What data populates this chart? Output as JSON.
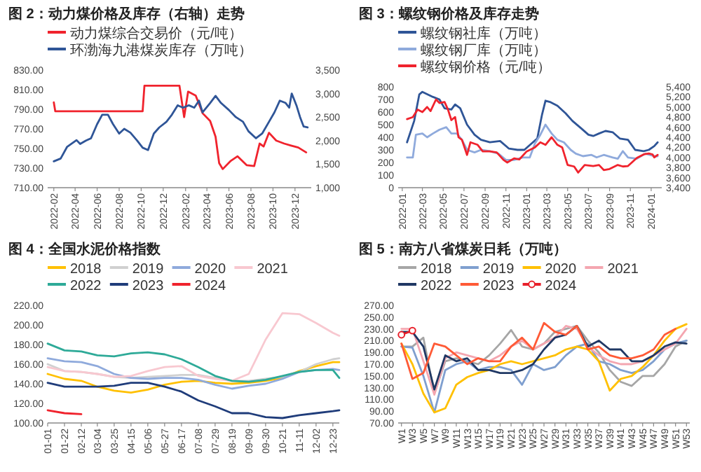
{
  "chart_data": [
    {
      "type": "line",
      "title": "图 2：动力煤价格及库存（右轴）走势",
      "legend": "top",
      "xlim": [
        "2022-01-15",
        "2024-01-15"
      ],
      "xticks": [
        "2022-02",
        "2022-04",
        "2022-06",
        "2022-08",
        "2022-10",
        "2022-12",
        "2023-02",
        "2023-04",
        "2023-06",
        "2023-08",
        "2023-10",
        "2023-12"
      ],
      "ylim": [
        710,
        830
      ],
      "yticks": [
        {
          "value": 710,
          "label": "710.00"
        },
        {
          "value": 730,
          "label": "730.00"
        },
        {
          "value": 750,
          "label": "750.00"
        },
        {
          "value": 770,
          "label": "770.00"
        },
        {
          "value": 790,
          "label": "790.00"
        },
        {
          "value": 810,
          "label": "810.00"
        },
        {
          "value": 830,
          "label": "830.00"
        }
      ],
      "y2lim": [
        1000,
        3500
      ],
      "y2ticks": [
        {
          "value": 1000,
          "label": "1,000"
        },
        {
          "value": 1500,
          "label": "1,500"
        },
        {
          "value": 2000,
          "label": "2,000"
        },
        {
          "value": 2500,
          "label": "2,500"
        },
        {
          "value": 3000,
          "label": "3,000"
        },
        {
          "value": 3500,
          "label": "3,500"
        }
      ],
      "series": [
        {
          "name": "动力煤综合交易价（元/吨）",
          "color": "#f0232d",
          "x": [
            "2022-02-01",
            "2022-02-05",
            "2022-10-05",
            "2022-10-10",
            "2023-01-15",
            "2023-01-28",
            "2023-02-08",
            "2023-03-01",
            "2023-03-20",
            "2023-04-10",
            "2023-04-25",
            "2023-05-05",
            "2023-05-15",
            "2023-06-05",
            "2023-06-25",
            "2023-07-20",
            "2023-08-10",
            "2023-08-25",
            "2023-09-05",
            "2023-09-20",
            "2023-10-10",
            "2023-11-01",
            "2023-11-20",
            "2023-12-10",
            "2024-01-01"
          ],
          "values": [
            797,
            788,
            788,
            814,
            814,
            782,
            808,
            804,
            786,
            778,
            762,
            735,
            729,
            737,
            742,
            733,
            732,
            755,
            752,
            766,
            758,
            755,
            753,
            751,
            746
          ]
        },
        {
          "name": "环渤海九港煤炭库存（万吨）",
          "color": "#2f5597",
          "axis": "y2",
          "x": [
            "2022-02-01",
            "2022-02-20",
            "2022-03-10",
            "2022-03-25",
            "2022-04-05",
            "2022-04-15",
            "2022-05-01",
            "2022-05-15",
            "2022-06-01",
            "2022-06-15",
            "2022-07-01",
            "2022-07-15",
            "2022-08-01",
            "2022-08-15",
            "2022-09-01",
            "2022-09-20",
            "2022-10-05",
            "2022-10-20",
            "2022-11-05",
            "2022-11-20",
            "2022-12-10",
            "2022-12-25",
            "2023-01-10",
            "2023-01-25",
            "2023-02-10",
            "2023-02-25",
            "2023-03-10",
            "2023-03-20",
            "2023-04-10",
            "2023-04-25",
            "2023-05-10",
            "2023-06-01",
            "2023-06-20",
            "2023-07-10",
            "2023-07-25",
            "2023-08-15",
            "2023-09-01",
            "2023-09-20",
            "2023-10-05",
            "2023-10-20",
            "2023-11-05",
            "2023-11-15",
            "2023-11-22",
            "2023-12-05",
            "2023-12-15",
            "2023-12-25",
            "2024-01-05"
          ],
          "values": [
            1560,
            1620,
            1870,
            1950,
            2010,
            1930,
            2000,
            2050,
            2350,
            2550,
            2550,
            2350,
            2150,
            2250,
            2170,
            2000,
            1850,
            1800,
            2150,
            2280,
            2400,
            2550,
            2750,
            2700,
            2750,
            2700,
            2850,
            2600,
            2800,
            2950,
            2800,
            2650,
            2500,
            2400,
            2200,
            2050,
            2150,
            2400,
            2600,
            2850,
            2800,
            2700,
            3000,
            2750,
            2500,
            2300,
            2280
          ]
        }
      ]
    },
    {
      "type": "line",
      "title": "图 3：螺纹钢价格及库存走势",
      "legend": "top",
      "xlim": [
        "2021-12-20",
        "2024-02-01"
      ],
      "xticks": [
        "2022-01",
        "2022-03",
        "2022-05",
        "2022-07",
        "2022-09",
        "2022-11",
        "2023-01",
        "2023-03",
        "2023-05",
        "2023-07",
        "2023-09",
        "2023-11",
        "2024-01"
      ],
      "ylim": [
        0,
        800
      ],
      "yticks": [
        0,
        100,
        200,
        300,
        400,
        500,
        600,
        700,
        800
      ],
      "y2lim": [
        3400,
        5400
      ],
      "y2ticks": [
        {
          "value": 3400,
          "label": "3,400"
        },
        {
          "value": 3600,
          "label": "3,600"
        },
        {
          "value": 3800,
          "label": "3,800"
        },
        {
          "value": 4000,
          "label": "4,000"
        },
        {
          "value": 4200,
          "label": "4,200"
        },
        {
          "value": 4400,
          "label": "4,400"
        },
        {
          "value": 4600,
          "label": "4,600"
        },
        {
          "value": 4800,
          "label": "4,800"
        },
        {
          "value": 5000,
          "label": "5,000"
        },
        {
          "value": 5200,
          "label": "5,200"
        },
        {
          "value": 5400,
          "label": "5,400"
        }
      ],
      "series": [
        {
          "name": "螺纹钢社库（万吨）",
          "color": "#2f5597",
          "x": [
            "2022-01-15",
            "2022-02-05",
            "2022-02-20",
            "2022-03-01",
            "2022-04-01",
            "2022-04-20",
            "2022-05-05",
            "2022-05-25",
            "2022-06-05",
            "2022-06-20",
            "2022-07-10",
            "2022-08-01",
            "2022-08-20",
            "2022-09-15",
            "2022-10-15",
            "2022-11-10",
            "2022-12-05",
            "2022-12-25",
            "2023-01-15",
            "2023-02-01",
            "2023-02-15",
            "2023-02-25",
            "2023-03-10",
            "2023-04-01",
            "2023-04-25",
            "2023-05-15",
            "2023-06-10",
            "2023-07-01",
            "2023-07-15",
            "2023-08-01",
            "2023-08-20",
            "2023-09-10",
            "2023-10-01",
            "2023-10-25",
            "2023-11-15",
            "2023-12-10",
            "2023-12-25",
            "2024-01-10",
            "2024-01-20"
          ],
          "values": [
            360,
            530,
            740,
            760,
            720,
            700,
            630,
            620,
            660,
            630,
            500,
            420,
            380,
            360,
            370,
            310,
            300,
            300,
            350,
            390,
            580,
            690,
            680,
            650,
            590,
            530,
            470,
            420,
            410,
            430,
            450,
            440,
            390,
            380,
            300,
            290,
            300,
            330,
            360
          ]
        },
        {
          "name": "螺纹钢厂库（万吨）",
          "color": "#8faadc",
          "x": [
            "2022-01-15",
            "2022-02-01",
            "2022-02-10",
            "2022-03-01",
            "2022-03-15",
            "2022-04-01",
            "2022-04-20",
            "2022-05-10",
            "2022-05-25",
            "2022-06-10",
            "2022-06-25",
            "2022-07-10",
            "2022-08-01",
            "2022-08-20",
            "2022-09-15",
            "2022-10-10",
            "2022-11-01",
            "2022-11-25",
            "2022-12-20",
            "2023-01-10",
            "2023-01-25",
            "2023-02-10",
            "2023-02-25",
            "2023-03-15",
            "2023-04-01",
            "2023-04-20",
            "2023-05-10",
            "2023-05-25",
            "2023-06-15",
            "2023-07-10",
            "2023-07-25",
            "2023-08-15",
            "2023-09-10",
            "2023-09-25",
            "2023-10-10",
            "2023-10-25",
            "2023-11-20",
            "2023-12-15",
            "2024-01-10",
            "2024-01-20"
          ],
          "values": [
            240,
            240,
            420,
            430,
            400,
            430,
            460,
            480,
            430,
            430,
            380,
            300,
            280,
            300,
            290,
            270,
            220,
            220,
            240,
            240,
            350,
            420,
            500,
            430,
            380,
            360,
            300,
            270,
            250,
            260,
            240,
            260,
            240,
            230,
            290,
            240,
            230,
            270,
            250,
            250
          ]
        },
        {
          "name": "螺纹钢价格（元/吨）",
          "color": "#f0232d",
          "axis": "y2",
          "x": [
            "2022-01-15",
            "2022-02-01",
            "2022-02-15",
            "2022-03-01",
            "2022-03-15",
            "2022-03-25",
            "2022-04-10",
            "2022-04-20",
            "2022-05-05",
            "2022-05-15",
            "2022-05-25",
            "2022-06-05",
            "2022-06-15",
            "2022-06-25",
            "2022-07-10",
            "2022-07-20",
            "2022-08-10",
            "2022-08-25",
            "2022-09-15",
            "2022-10-05",
            "2022-10-25",
            "2022-11-05",
            "2022-11-25",
            "2022-12-10",
            "2023-01-01",
            "2023-01-25",
            "2023-02-10",
            "2023-02-25",
            "2023-03-15",
            "2023-04-01",
            "2023-04-15",
            "2023-05-01",
            "2023-05-20",
            "2023-06-01",
            "2023-06-20",
            "2023-07-15",
            "2023-08-01",
            "2023-08-15",
            "2023-09-01",
            "2023-09-25",
            "2023-10-10",
            "2023-10-25",
            "2023-11-20",
            "2023-12-10",
            "2023-12-25",
            "2024-01-05",
            "2024-01-10",
            "2024-01-20"
          ],
          "values": [
            4760,
            4800,
            4950,
            4900,
            5000,
            4920,
            5150,
            5080,
            5100,
            4950,
            4740,
            4800,
            4400,
            4350,
            4050,
            4300,
            4250,
            4120,
            4120,
            4100,
            3950,
            3900,
            3980,
            3960,
            4120,
            4200,
            4300,
            4250,
            4400,
            4250,
            4200,
            3850,
            3820,
            3700,
            3850,
            3830,
            3850,
            3750,
            3770,
            3850,
            3820,
            3830,
            3990,
            4060,
            4080,
            4060,
            4000,
            4050
          ]
        }
      ]
    },
    {
      "type": "line",
      "title": "图 4：全国水泥价格指数",
      "legend": "top",
      "x": [
        "--01-01",
        "--01-22",
        "--02-12",
        "--03-04",
        "--03-25",
        "--04-15",
        "--05-06",
        "--05-27",
        "--06-17",
        "--07-08",
        "--07-29",
        "--08-19",
        "--09-09",
        "--09-30",
        "--10-21",
        "--11-11",
        "--12-02",
        "--12-23",
        "--12-31"
      ],
      "xlim": [
        "--01-01",
        "--12-31"
      ],
      "xticks": [
        {
          "value": "--01-01",
          "label": "01-01"
        },
        {
          "value": "--01-22",
          "label": "01-22"
        },
        {
          "value": "--02-12",
          "label": "02-12"
        },
        {
          "value": "--03-04",
          "label": "03-04"
        },
        {
          "value": "--03-25",
          "label": "03-25"
        },
        {
          "value": "--04-15",
          "label": "04-15"
        },
        {
          "value": "--05-06",
          "label": "05-06"
        },
        {
          "value": "--05-27",
          "label": "05-27"
        },
        {
          "value": "--06-17",
          "label": "06-17"
        },
        {
          "value": "--07-08",
          "label": "07-08"
        },
        {
          "value": "--07-29",
          "label": "07-29"
        },
        {
          "value": "--08-19",
          "label": "08-19"
        },
        {
          "value": "--09-09",
          "label": "09-09"
        },
        {
          "value": "--09-30",
          "label": "09-30"
        },
        {
          "value": "--10-21",
          "label": "10-21"
        },
        {
          "value": "--11-11",
          "label": "11-11"
        },
        {
          "value": "--12-02",
          "label": "12-02"
        },
        {
          "value": "--12-23",
          "label": "12-23"
        }
      ],
      "ylim": [
        100,
        220
      ],
      "yticks": [
        {
          "value": 100,
          "label": "100.00"
        },
        {
          "value": 120,
          "label": "120.00"
        },
        {
          "value": 140,
          "label": "140.00"
        },
        {
          "value": 160,
          "label": "160.00"
        },
        {
          "value": 180,
          "label": "180.00"
        },
        {
          "value": 200,
          "label": "200.00"
        },
        {
          "value": 220,
          "label": "220.00"
        }
      ],
      "series": [
        {
          "name": "2018",
          "color": "#ffc000",
          "values": [
            150,
            145,
            143,
            137,
            133,
            131,
            134,
            139,
            142,
            143,
            141,
            140,
            141,
            143,
            146,
            153,
            158,
            162,
            162
          ]
        },
        {
          "name": "2019",
          "color": "#d0d0d0",
          "values": [
            160,
            153,
            152,
            150,
            147,
            146,
            147,
            148,
            149,
            149,
            146,
            143,
            143,
            145,
            147,
            152,
            160,
            165,
            166
          ]
        },
        {
          "name": "2020",
          "color": "#8faadc",
          "values": [
            166,
            163,
            162,
            158,
            150,
            146,
            145,
            146,
            146,
            144,
            139,
            135,
            138,
            140,
            145,
            152,
            154,
            155,
            154
          ]
        },
        {
          "name": "2021",
          "color": "#f8c8d0",
          "values": [
            157,
            153,
            152,
            150,
            147,
            148,
            153,
            157,
            158,
            148,
            145,
            143,
            150,
            185,
            212,
            211,
            202,
            192,
            189
          ]
        },
        {
          "name": "2022",
          "color": "#2eaa98",
          "values": [
            181,
            174,
            173,
            169,
            168,
            171,
            172,
            170,
            165,
            157,
            148,
            143,
            142,
            144,
            148,
            152,
            154,
            154,
            146
          ]
        },
        {
          "name": "2023",
          "color": "#1f3c7a",
          "values": [
            141,
            137,
            137,
            137,
            138,
            141,
            141,
            137,
            132,
            123,
            117,
            110,
            110,
            106,
            105,
            108,
            110,
            112,
            113
          ]
        },
        {
          "name": "2024",
          "color": "#f0232d",
          "values": [
            113,
            110,
            109,
            null,
            null,
            null,
            null,
            null,
            null,
            null,
            null,
            null,
            null,
            null,
            null,
            null,
            null,
            null,
            null
          ]
        }
      ]
    },
    {
      "type": "line",
      "title": "图 5：南方八省煤炭日耗（万吨）",
      "legend": "top",
      "categories": [
        "W1",
        "W3",
        "W5",
        "W7",
        "W9",
        "W11",
        "W13",
        "W15",
        "W17",
        "W19",
        "W21",
        "W23",
        "W25",
        "W27",
        "W29",
        "W31",
        "W33",
        "W35",
        "W37",
        "W39",
        "W41",
        "W43",
        "W45",
        "W47",
        "W49",
        "W51",
        "W53"
      ],
      "ylim": [
        70,
        270
      ],
      "yticks": [
        {
          "value": 70,
          "label": "70.00"
        },
        {
          "value": 90,
          "label": "90.00"
        },
        {
          "value": 110,
          "label": "110.00"
        },
        {
          "value": 130,
          "label": "130.00"
        },
        {
          "value": 150,
          "label": "150.00"
        },
        {
          "value": 170,
          "label": "170.00"
        },
        {
          "value": 190,
          "label": "190.00"
        },
        {
          "value": 210,
          "label": "210.00"
        },
        {
          "value": 230,
          "label": "230.00"
        },
        {
          "value": 250,
          "label": "250.00"
        },
        {
          "value": 270,
          "label": "270.00"
        }
      ],
      "series": [
        {
          "name": "2018",
          "color": "#a6a6a6",
          "values": [
            200,
            200,
            215,
            120,
            175,
            180,
            175,
            170,
            185,
            205,
            228,
            200,
            195,
            205,
            225,
            230,
            235,
            210,
            190,
            160,
            140,
            133,
            150,
            150,
            170,
            200,
            210
          ]
        },
        {
          "name": "2019",
          "color": "#7f9fcf",
          "values": [
            200,
            198,
            150,
            88,
            160,
            170,
            175,
            160,
            165,
            165,
            160,
            135,
            170,
            160,
            165,
            185,
            200,
            205,
            175,
            170,
            160,
            155,
            160,
            175,
            195,
            205,
            210
          ]
        },
        {
          "name": "2020",
          "color": "#ffc000",
          "values": [
            205,
            170,
            120,
            88,
            95,
            135,
            148,
            155,
            160,
            170,
            175,
            170,
            175,
            180,
            185,
            195,
            200,
            195,
            175,
            125,
            145,
            150,
            165,
            185,
            210,
            230,
            238
          ]
        },
        {
          "name": "2021",
          "color": "#f4a6b0",
          "values": [
            230,
            230,
            175,
            118,
            180,
            190,
            185,
            180,
            175,
            185,
            200,
            210,
            195,
            205,
            215,
            235,
            230,
            200,
            185,
            175,
            170,
            170,
            175,
            185,
            195,
            205,
            230
          ]
        },
        {
          "name": "2022",
          "color": "#203864",
          "values": [
            225,
            225,
            200,
            127,
            185,
            175,
            180,
            160,
            160,
            155,
            155,
            160,
            170,
            195,
            215,
            220,
            235,
            200,
            210,
            195,
            195,
            175,
            175,
            185,
            200,
            207,
            205
          ]
        },
        {
          "name": "2023",
          "color": "#ff5a36",
          "values": [
            205,
            145,
            155,
            205,
            200,
            185,
            170,
            180,
            175,
            175,
            200,
            215,
            195,
            240,
            225,
            220,
            235,
            195,
            200,
            185,
            180,
            180,
            185,
            195,
            220,
            230,
            null
          ]
        },
        {
          "name": "2024",
          "color": "#e8202a",
          "marker": "circle",
          "values": [
            220,
            227,
            null,
            null,
            null,
            null,
            null,
            null,
            null,
            null,
            null,
            null,
            null,
            null,
            null,
            null,
            null,
            null,
            null,
            null,
            null,
            null,
            null,
            null,
            null,
            null,
            null
          ]
        }
      ]
    }
  ]
}
